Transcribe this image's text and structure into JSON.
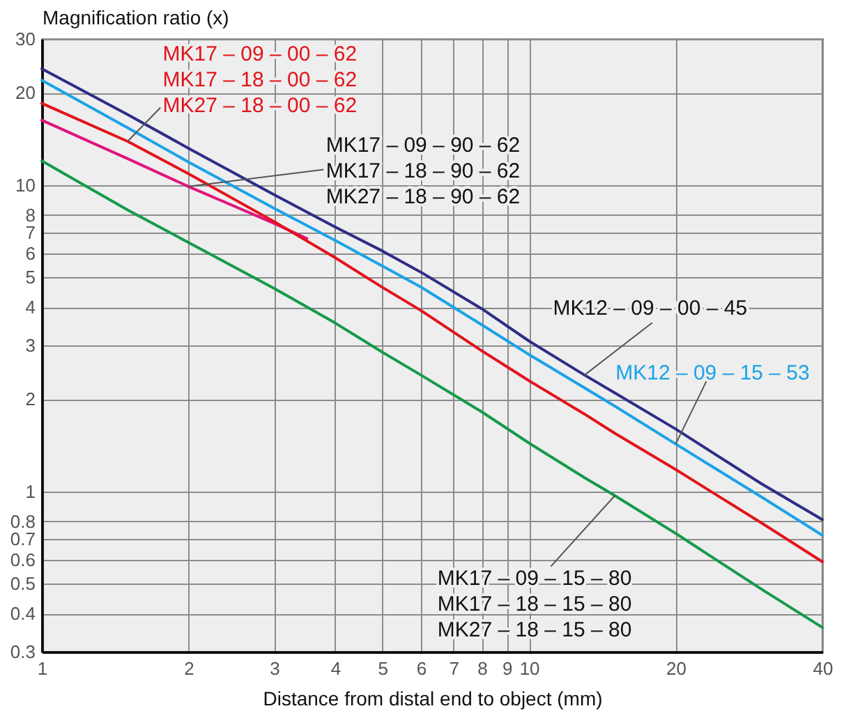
{
  "chart_data": {
    "type": "line",
    "xlabel": "Distance from distal end to object (mm)",
    "ylabel": "Magnification ratio (x)",
    "log": "xy",
    "grid": true,
    "xlim": [
      1,
      40
    ],
    "xticks": [
      1,
      2,
      3,
      4,
      5,
      6,
      7,
      8,
      9,
      10,
      20,
      40
    ],
    "ylim": [
      0.3,
      30
    ],
    "yticks": [
      0.3,
      0.4,
      0.5,
      0.6,
      0.7,
      0.8,
      1,
      2,
      3,
      4,
      5,
      6,
      7,
      8,
      10,
      20,
      30
    ],
    "x": [
      1,
      1.5,
      2,
      3,
      4,
      5,
      6,
      8,
      10,
      13,
      15,
      20,
      30,
      40
    ],
    "series": [
      {
        "name": "MK12 – 09 – 00 – 45",
        "color": "#2e2d88",
        "values": [
          24,
          17,
          13.2,
          9.3,
          7.3,
          6.1,
          5.2,
          3.95,
          3.1,
          2.4,
          2.1,
          1.6,
          1.06,
          0.81
        ]
      },
      {
        "name": "MK12 – 09 – 15 – 53",
        "color": "#1aa3e8",
        "values": [
          22,
          15.4,
          11.9,
          8.4,
          6.6,
          5.45,
          4.65,
          3.5,
          2.8,
          2.18,
          1.9,
          1.43,
          0.96,
          0.72
        ]
      },
      {
        "name": "MK17 – 09 – 90 – 62\nMK17 – 18 – 90 – 62\nMK27 – 18 – 90 – 62",
        "color": "#e0147f",
        "x": [
          1,
          1.5,
          2,
          2.5,
          3,
          3.5
        ],
        "values": [
          16.3,
          12.2,
          9.9,
          8.5,
          7.5,
          6.7
        ]
      },
      {
        "name": "MK17 – 09 – 00 – 62\nMK17 – 18 – 00 – 62\nMK27 – 18 – 00 – 62",
        "color": "#e3131b",
        "values": [
          18.5,
          13.9,
          10.9,
          7.6,
          5.8,
          4.64,
          3.9,
          2.88,
          2.3,
          1.79,
          1.55,
          1.18,
          0.79,
          0.59
        ]
      },
      {
        "name": "MK17 – 09 – 15 – 80\nMK17 – 18 – 15 – 80\nMK27 – 18 – 15 – 80",
        "color": "#169a4a",
        "values": [
          12,
          8.3,
          6.5,
          4.6,
          3.55,
          2.85,
          2.4,
          1.82,
          1.44,
          1.11,
          0.97,
          0.73,
          0.48,
          0.36
        ]
      }
    ]
  }
}
